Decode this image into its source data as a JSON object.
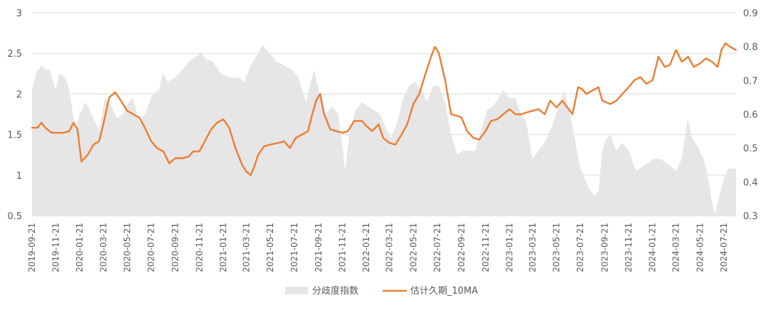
{
  "chart_data": {
    "type": "area",
    "title": "",
    "xlabel": "",
    "ylabel": "",
    "grid": true,
    "legend_position": "bottom",
    "y_left": {
      "min": 0.5,
      "max": 3,
      "ticks": [
        "3",
        "2.5",
        "2",
        "1.5",
        "1",
        "0.5"
      ]
    },
    "y_right": {
      "min": 0.3,
      "max": 0.9,
      "ticks": [
        "0.9",
        "0.8",
        "0.7",
        "0.6",
        "0.5",
        "0.4",
        "0.3"
      ]
    },
    "x_range": [
      "2019-09-21",
      "2024-08-21"
    ],
    "x_tick_labels": [
      "2019-09-21",
      "2019-11-21",
      "2020-01-21",
      "2020-03-21",
      "2020-05-21",
      "2020-07-21",
      "2020-09-21",
      "2020-11-21",
      "2021-01-21",
      "2021-03-21",
      "2021-05-21",
      "2021-07-21",
      "2021-09-21",
      "2021-11-21",
      "2022-01-21",
      "2022-03-21",
      "2022-05-21",
      "2022-07-21",
      "2022-09-21",
      "2022-11-21",
      "2023-01-21",
      "2023-03-21",
      "2023-05-21",
      "2023-07-21",
      "2023-09-21",
      "2023-11-21",
      "2024-01-21",
      "2024-03-21",
      "2024-05-21",
      "2024-07-21"
    ],
    "series": [
      {
        "name": "分歧度指数",
        "type": "area",
        "axis": "left",
        "color": "#e6e6e6",
        "points": [
          [
            "2019-09-21",
            2.05
          ],
          [
            "2019-10-01",
            2.25
          ],
          [
            "2019-10-15",
            2.35
          ],
          [
            "2019-10-25",
            2.3
          ],
          [
            "2019-11-05",
            2.3
          ],
          [
            "2019-11-20",
            2.05
          ],
          [
            "2019-12-01",
            2.25
          ],
          [
            "2019-12-15",
            2.2
          ],
          [
            "2019-12-25",
            2.05
          ],
          [
            "2020-01-10",
            1.55
          ],
          [
            "2020-01-21",
            1.75
          ],
          [
            "2020-02-05",
            1.9
          ],
          [
            "2020-02-20",
            1.75
          ],
          [
            "2020-03-10",
            1.55
          ],
          [
            "2020-03-25",
            1.95
          ],
          [
            "2020-04-10",
            1.85
          ],
          [
            "2020-04-25",
            1.7
          ],
          [
            "2020-05-10",
            1.75
          ],
          [
            "2020-05-25",
            1.9
          ],
          [
            "2020-06-05",
            1.95
          ],
          [
            "2020-06-20",
            1.65
          ],
          [
            "2020-07-05",
            1.75
          ],
          [
            "2020-07-25",
            2.0
          ],
          [
            "2020-08-10",
            2.05
          ],
          [
            "2020-08-20",
            2.25
          ],
          [
            "2020-09-01",
            2.15
          ],
          [
            "2020-09-20",
            2.2
          ],
          [
            "2020-10-10",
            2.3
          ],
          [
            "2020-10-25",
            2.4
          ],
          [
            "2020-11-10",
            2.45
          ],
          [
            "2020-11-25",
            2.5
          ],
          [
            "2020-12-10",
            2.42
          ],
          [
            "2020-12-25",
            2.4
          ],
          [
            "2021-01-15",
            2.25
          ],
          [
            "2021-02-10",
            2.2
          ],
          [
            "2021-03-01",
            2.2
          ],
          [
            "2021-03-15",
            2.15
          ],
          [
            "2021-04-01",
            2.35
          ],
          [
            "2021-04-20",
            2.5
          ],
          [
            "2021-05-01",
            2.6
          ],
          [
            "2021-05-20",
            2.5
          ],
          [
            "2021-06-05",
            2.4
          ],
          [
            "2021-06-25",
            2.35
          ],
          [
            "2021-07-15",
            2.3
          ],
          [
            "2021-08-01",
            2.2
          ],
          [
            "2021-08-20",
            1.9
          ],
          [
            "2021-09-01",
            2.15
          ],
          [
            "2021-09-10",
            2.3
          ],
          [
            "2021-09-25",
            1.95
          ],
          [
            "2021-10-10",
            1.75
          ],
          [
            "2021-10-25",
            1.85
          ],
          [
            "2021-11-10",
            1.75
          ],
          [
            "2021-11-21",
            1.35
          ],
          [
            "2021-11-28",
            1.05
          ],
          [
            "2021-12-10",
            1.55
          ],
          [
            "2021-12-25",
            1.8
          ],
          [
            "2022-01-10",
            1.9
          ],
          [
            "2022-01-25",
            1.85
          ],
          [
            "2022-02-10",
            1.8
          ],
          [
            "2022-02-25",
            1.75
          ],
          [
            "2022-03-10",
            1.6
          ],
          [
            "2022-03-25",
            1.45
          ],
          [
            "2022-04-10",
            1.65
          ],
          [
            "2022-04-25",
            1.95
          ],
          [
            "2022-05-10",
            2.1
          ],
          [
            "2022-05-25",
            2.15
          ],
          [
            "2022-06-10",
            2.05
          ],
          [
            "2022-06-25",
            1.9
          ],
          [
            "2022-07-10",
            2.1
          ],
          [
            "2022-07-25",
            2.1
          ],
          [
            "2022-08-10",
            1.9
          ],
          [
            "2022-08-25",
            1.5
          ],
          [
            "2022-09-10",
            1.25
          ],
          [
            "2022-09-25",
            1.3
          ],
          [
            "2022-10-10",
            1.3
          ],
          [
            "2022-10-25",
            1.3
          ],
          [
            "2022-11-10",
            1.55
          ],
          [
            "2022-11-25",
            1.8
          ],
          [
            "2022-12-10",
            1.85
          ],
          [
            "2022-12-25",
            1.95
          ],
          [
            "2023-01-05",
            2.05
          ],
          [
            "2023-01-21",
            1.95
          ],
          [
            "2023-02-05",
            1.95
          ],
          [
            "2023-02-20",
            1.75
          ],
          [
            "2023-03-05",
            1.65
          ],
          [
            "2023-03-21",
            1.2
          ],
          [
            "2023-04-05",
            1.3
          ],
          [
            "2023-04-21",
            1.4
          ],
          [
            "2023-05-05",
            1.55
          ],
          [
            "2023-05-20",
            1.75
          ],
          [
            "2023-06-01",
            1.9
          ],
          [
            "2023-06-10",
            2.05
          ],
          [
            "2023-06-20",
            1.85
          ],
          [
            "2023-07-05",
            1.5
          ],
          [
            "2023-07-20",
            1.1
          ],
          [
            "2023-08-10",
            0.85
          ],
          [
            "2023-08-25",
            0.75
          ],
          [
            "2023-09-05",
            0.8
          ],
          [
            "2023-09-15",
            1.3
          ],
          [
            "2023-09-25",
            1.45
          ],
          [
            "2023-10-05",
            1.5
          ],
          [
            "2023-10-20",
            1.3
          ],
          [
            "2023-11-05",
            1.4
          ],
          [
            "2023-11-21",
            1.3
          ],
          [
            "2023-12-10",
            1.05
          ],
          [
            "2023-12-25",
            1.1
          ],
          [
            "2024-01-10",
            1.15
          ],
          [
            "2024-01-25",
            1.2
          ],
          [
            "2024-02-10",
            1.2
          ],
          [
            "2024-02-25",
            1.15
          ],
          [
            "2024-03-10",
            1.1
          ],
          [
            "2024-03-21",
            1.05
          ],
          [
            "2024-04-05",
            1.2
          ],
          [
            "2024-04-15",
            1.55
          ],
          [
            "2024-04-20",
            1.7
          ],
          [
            "2024-05-01",
            1.45
          ],
          [
            "2024-05-15",
            1.35
          ],
          [
            "2024-05-30",
            1.2
          ],
          [
            "2024-06-10",
            1.0
          ],
          [
            "2024-06-21",
            0.65
          ],
          [
            "2024-06-28",
            0.52
          ],
          [
            "2024-07-10",
            0.75
          ],
          [
            "2024-07-21",
            0.95
          ],
          [
            "2024-08-01",
            1.08
          ],
          [
            "2024-08-21",
            1.08
          ]
        ]
      },
      {
        "name": "估计久期_10MA",
        "type": "line",
        "axis": "right",
        "color": "#ed7d31",
        "points": [
          [
            "2019-09-21",
            0.56
          ],
          [
            "2019-10-05",
            0.56
          ],
          [
            "2019-10-15",
            0.575
          ],
          [
            "2019-10-25",
            0.56
          ],
          [
            "2019-11-10",
            0.545
          ],
          [
            "2019-11-21",
            0.545
          ],
          [
            "2019-12-10",
            0.545
          ],
          [
            "2019-12-25",
            0.55
          ],
          [
            "2020-01-05",
            0.575
          ],
          [
            "2020-01-15",
            0.555
          ],
          [
            "2020-01-25",
            0.46
          ],
          [
            "2020-02-10",
            0.48
          ],
          [
            "2020-02-25",
            0.51
          ],
          [
            "2020-03-10",
            0.52
          ],
          [
            "2020-03-21",
            0.57
          ],
          [
            "2020-04-05",
            0.65
          ],
          [
            "2020-04-20",
            0.665
          ],
          [
            "2020-05-05",
            0.64
          ],
          [
            "2020-05-21",
            0.61
          ],
          [
            "2020-06-05",
            0.6
          ],
          [
            "2020-06-21",
            0.59
          ],
          [
            "2020-07-05",
            0.56
          ],
          [
            "2020-07-21",
            0.52
          ],
          [
            "2020-08-05",
            0.5
          ],
          [
            "2020-08-21",
            0.49
          ],
          [
            "2020-09-05",
            0.455
          ],
          [
            "2020-09-21",
            0.47
          ],
          [
            "2020-10-10",
            0.47
          ],
          [
            "2020-10-25",
            0.475
          ],
          [
            "2020-11-05",
            0.49
          ],
          [
            "2020-11-21",
            0.49
          ],
          [
            "2020-12-05",
            0.52
          ],
          [
            "2020-12-21",
            0.555
          ],
          [
            "2021-01-05",
            0.575
          ],
          [
            "2021-01-21",
            0.585
          ],
          [
            "2021-02-05",
            0.56
          ],
          [
            "2021-02-21",
            0.5
          ],
          [
            "2021-03-10",
            0.45
          ],
          [
            "2021-03-21",
            0.43
          ],
          [
            "2021-04-01",
            0.42
          ],
          [
            "2021-04-10",
            0.445
          ],
          [
            "2021-04-20",
            0.48
          ],
          [
            "2021-05-05",
            0.505
          ],
          [
            "2021-05-21",
            0.51
          ],
          [
            "2021-06-10",
            0.515
          ],
          [
            "2021-06-25",
            0.52
          ],
          [
            "2021-07-10",
            0.5
          ],
          [
            "2021-07-25",
            0.53
          ],
          [
            "2021-08-10",
            0.54
          ],
          [
            "2021-08-25",
            0.55
          ],
          [
            "2021-09-05",
            0.6
          ],
          [
            "2021-09-15",
            0.64
          ],
          [
            "2021-09-25",
            0.66
          ],
          [
            "2021-10-05",
            0.6
          ],
          [
            "2021-10-21",
            0.555
          ],
          [
            "2021-11-05",
            0.55
          ],
          [
            "2021-11-21",
            0.545
          ],
          [
            "2021-12-05",
            0.55
          ],
          [
            "2021-12-21",
            0.58
          ],
          [
            "2022-01-10",
            0.58
          ],
          [
            "2022-01-21",
            0.565
          ],
          [
            "2022-02-05",
            0.55
          ],
          [
            "2022-02-21",
            0.57
          ],
          [
            "2022-03-05",
            0.53
          ],
          [
            "2022-03-21",
            0.515
          ],
          [
            "2022-04-05",
            0.51
          ],
          [
            "2022-04-21",
            0.54
          ],
          [
            "2022-05-05",
            0.57
          ],
          [
            "2022-05-21",
            0.63
          ],
          [
            "2022-06-05",
            0.66
          ],
          [
            "2022-06-21",
            0.72
          ],
          [
            "2022-07-05",
            0.77
          ],
          [
            "2022-07-15",
            0.8
          ],
          [
            "2022-07-25",
            0.78
          ],
          [
            "2022-08-10",
            0.7
          ],
          [
            "2022-08-25",
            0.6
          ],
          [
            "2022-09-10",
            0.595
          ],
          [
            "2022-09-21",
            0.59
          ],
          [
            "2022-10-05",
            0.55
          ],
          [
            "2022-10-21",
            0.53
          ],
          [
            "2022-11-05",
            0.525
          ],
          [
            "2022-11-21",
            0.55
          ],
          [
            "2022-12-05",
            0.58
          ],
          [
            "2022-12-21",
            0.585
          ],
          [
            "2023-01-05",
            0.6
          ],
          [
            "2023-01-21",
            0.615
          ],
          [
            "2023-02-05",
            0.6
          ],
          [
            "2023-02-21",
            0.6
          ],
          [
            "2023-03-05",
            0.605
          ],
          [
            "2023-03-21",
            0.61
          ],
          [
            "2023-04-05",
            0.615
          ],
          [
            "2023-04-21",
            0.6
          ],
          [
            "2023-05-05",
            0.64
          ],
          [
            "2023-05-21",
            0.62
          ],
          [
            "2023-06-05",
            0.64
          ],
          [
            "2023-06-21",
            0.615
          ],
          [
            "2023-07-01",
            0.6
          ],
          [
            "2023-07-15",
            0.68
          ],
          [
            "2023-07-25",
            0.675
          ],
          [
            "2023-08-05",
            0.66
          ],
          [
            "2023-08-21",
            0.67
          ],
          [
            "2023-09-05",
            0.68
          ],
          [
            "2023-09-15",
            0.64
          ],
          [
            "2023-10-05",
            0.63
          ],
          [
            "2023-10-21",
            0.64
          ],
          [
            "2023-11-05",
            0.66
          ],
          [
            "2023-11-21",
            0.68
          ],
          [
            "2023-12-05",
            0.7
          ],
          [
            "2023-12-21",
            0.71
          ],
          [
            "2024-01-05",
            0.69
          ],
          [
            "2024-01-21",
            0.7
          ],
          [
            "2024-02-05",
            0.77
          ],
          [
            "2024-02-21",
            0.74
          ],
          [
            "2024-03-05",
            0.745
          ],
          [
            "2024-03-21",
            0.79
          ],
          [
            "2024-04-05",
            0.755
          ],
          [
            "2024-04-21",
            0.77
          ],
          [
            "2024-05-05",
            0.74
          ],
          [
            "2024-05-21",
            0.75
          ],
          [
            "2024-06-05",
            0.765
          ],
          [
            "2024-06-21",
            0.755
          ],
          [
            "2024-07-05",
            0.74
          ],
          [
            "2024-07-15",
            0.79
          ],
          [
            "2024-07-25",
            0.81
          ],
          [
            "2024-08-05",
            0.8
          ],
          [
            "2024-08-21",
            0.79
          ]
        ]
      }
    ]
  }
}
